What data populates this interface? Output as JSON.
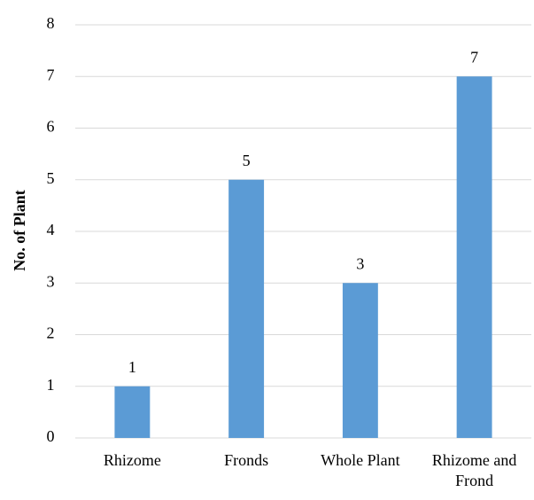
{
  "chart_data": {
    "type": "bar",
    "title": "",
    "xlabel": "",
    "ylabel": "No. of  Plant",
    "categories": [
      "Rhizome",
      "Fronds",
      "Whole Plant",
      "Rhizome and Frond"
    ],
    "category_label_lines": [
      [
        "Rhizome"
      ],
      [
        "Fronds"
      ],
      [
        "Whole Plant"
      ],
      [
        "Rhizome and",
        "Frond"
      ]
    ],
    "values": [
      1,
      5,
      3,
      7
    ],
    "data_labels": [
      "1",
      "5",
      "3",
      "7"
    ],
    "ylim": [
      0,
      8
    ],
    "yticks": [
      "0",
      "1",
      "2",
      "3",
      "4",
      "5",
      "6",
      "7",
      "8"
    ],
    "grid": true,
    "legend": "none",
    "colors": {
      "bar": "#5b9bd5",
      "grid": "#d9d9d9",
      "axis": "#d9d9d9"
    }
  }
}
